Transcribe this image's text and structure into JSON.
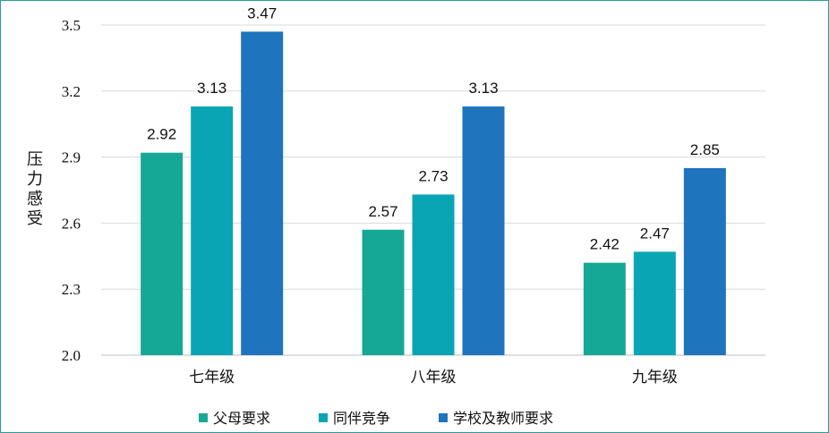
{
  "chart_data": {
    "type": "bar",
    "ylabel": "压力感受",
    "categories": [
      "七年级",
      "八年级",
      "九年级"
    ],
    "ylim": [
      2.0,
      3.5
    ],
    "yticks": [
      "2.0",
      "2.3",
      "2.6",
      "2.9",
      "3.2",
      "3.5"
    ],
    "grid": true,
    "legend_position": "bottom",
    "series": [
      {
        "name": "父母要求",
        "color": "#16a896",
        "values": [
          2.92,
          2.57,
          2.42
        ],
        "labels": [
          "2.92",
          "2.57",
          "2.42"
        ]
      },
      {
        "name": "同伴竞争",
        "color": "#0aa5b4",
        "values": [
          3.13,
          2.73,
          2.47
        ],
        "labels": [
          "3.13",
          "2.73",
          "2.47"
        ]
      },
      {
        "name": "学校及教师要求",
        "color": "#1e74bd",
        "values": [
          3.47,
          3.13,
          2.85
        ],
        "labels": [
          "3.47",
          "3.13",
          "2.85"
        ]
      }
    ]
  }
}
